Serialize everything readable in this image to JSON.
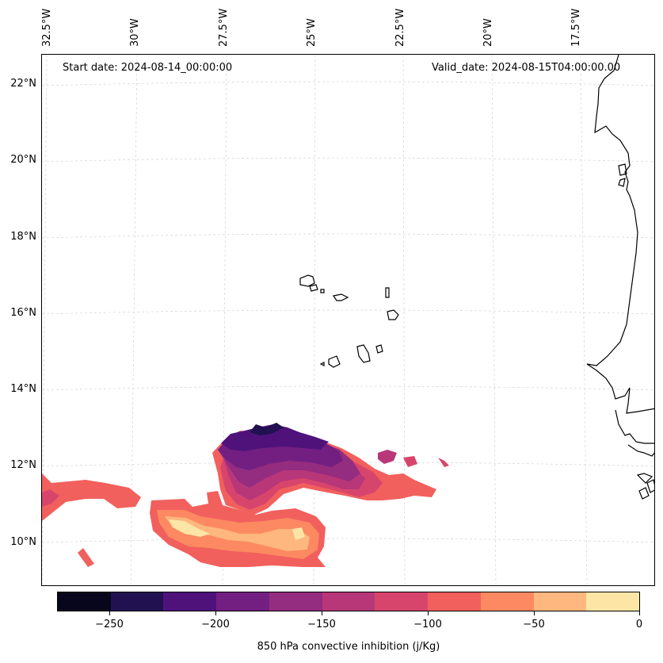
{
  "map": {
    "start_date": "Start date: 2024-08-14_00:00:00",
    "valid_date": "Valid_date: 2024-08-15T04:00:00.00",
    "lon_labels": [
      "32.5°W",
      "30°W",
      "27.5°W",
      "25°W",
      "22.5°W",
      "20°W",
      "17.5°W"
    ],
    "lat_labels": [
      "22°N",
      "20°N",
      "18°N",
      "16°N",
      "14°N",
      "12°N",
      "10°N"
    ],
    "coastline_color": "#000000",
    "gridline_color": "#cccccc"
  },
  "colorbar": {
    "title": "850 hPa convective inhibition (j/Kg)",
    "levels": [
      -275,
      -250,
      -225,
      -200,
      -175,
      -150,
      -125,
      -100,
      -75,
      -50,
      -25,
      0
    ],
    "colors": [
      "#07061c",
      "#221150",
      "#4f127b",
      "#721f81",
      "#942c80",
      "#b73779",
      "#d8456c",
      "#f1605d",
      "#fc8961",
      "#feb77e",
      "#fde5a6"
    ],
    "tick_labels": [
      "−250",
      "−200",
      "−150",
      "−100",
      "−50",
      "0"
    ]
  }
}
